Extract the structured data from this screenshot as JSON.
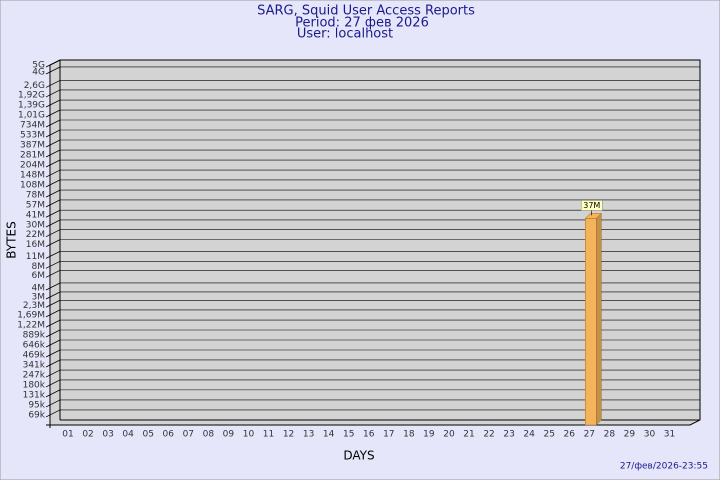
{
  "chart_data": {
    "type": "bar",
    "title": "SARG, Squid User Access Reports",
    "subtitle": [
      "Period: 27 фев 2026",
      "User: localhost"
    ],
    "xlabel": "DAYS",
    "ylabel": "BYTES",
    "footer": "27/фев/2026-23:55",
    "categories": [
      "01",
      "02",
      "03",
      "04",
      "05",
      "06",
      "07",
      "08",
      "09",
      "10",
      "11",
      "12",
      "13",
      "14",
      "15",
      "16",
      "17",
      "18",
      "19",
      "20",
      "21",
      "22",
      "23",
      "24",
      "25",
      "26",
      "27",
      "28",
      "29",
      "30",
      "31"
    ],
    "values": [
      null,
      null,
      null,
      null,
      null,
      null,
      null,
      null,
      null,
      null,
      null,
      null,
      null,
      null,
      null,
      null,
      null,
      null,
      null,
      null,
      null,
      null,
      null,
      null,
      null,
      null,
      37000000,
      null,
      null,
      null,
      null
    ],
    "value_labels": [
      null,
      null,
      null,
      null,
      null,
      null,
      null,
      null,
      null,
      null,
      null,
      null,
      null,
      null,
      null,
      null,
      null,
      null,
      null,
      null,
      null,
      null,
      null,
      null,
      null,
      null,
      "37M",
      null,
      null,
      null,
      null
    ],
    "color": "#f4b45c",
    "yscale": "log",
    "ylim": [
      50000,
      5000000000
    ],
    "yticks": [
      {
        "value": 69000,
        "label": "69k"
      },
      {
        "value": 95000,
        "label": "95k"
      },
      {
        "value": 131000,
        "label": "131k"
      },
      {
        "value": 180000,
        "label": "180k"
      },
      {
        "value": 247000,
        "label": "247k"
      },
      {
        "value": 341000,
        "label": "341k"
      },
      {
        "value": 469000,
        "label": "469k"
      },
      {
        "value": 646000,
        "label": "646k"
      },
      {
        "value": 889000,
        "label": "889k"
      },
      {
        "value": 1220000,
        "label": "1,22M"
      },
      {
        "value": 1690000,
        "label": "1,69M"
      },
      {
        "value": 2300000,
        "label": "2,3M"
      },
      {
        "value": 3000000,
        "label": "3M"
      },
      {
        "value": 4000000,
        "label": "4M"
      },
      {
        "value": 6000000,
        "label": "6M"
      },
      {
        "value": 8000000,
        "label": "8M"
      },
      {
        "value": 11000000,
        "label": "11M"
      },
      {
        "value": 16000000,
        "label": "16M"
      },
      {
        "value": 22000000,
        "label": "22M"
      },
      {
        "value": 30000000,
        "label": "30M"
      },
      {
        "value": 41000000,
        "label": "41M"
      },
      {
        "value": 57000000,
        "label": "57M"
      },
      {
        "value": 78000000,
        "label": "78M"
      },
      {
        "value": 108000000,
        "label": "108M"
      },
      {
        "value": 148000000,
        "label": "148M"
      },
      {
        "value": 204000000,
        "label": "204M"
      },
      {
        "value": 281000000,
        "label": "281M"
      },
      {
        "value": 387000000,
        "label": "387M"
      },
      {
        "value": 533000000,
        "label": "533M"
      },
      {
        "value": 734000000,
        "label": "734M"
      },
      {
        "value": 1010000000,
        "label": "1,01G"
      },
      {
        "value": 1390000000,
        "label": "1,39G"
      },
      {
        "value": 1920000000,
        "label": "1,92G"
      },
      {
        "value": 2600000000,
        "label": "2,6G"
      },
      {
        "value": 4000000000,
        "label": "4G"
      },
      {
        "value": 5000000000,
        "label": "5G"
      }
    ],
    "grid": true
  }
}
